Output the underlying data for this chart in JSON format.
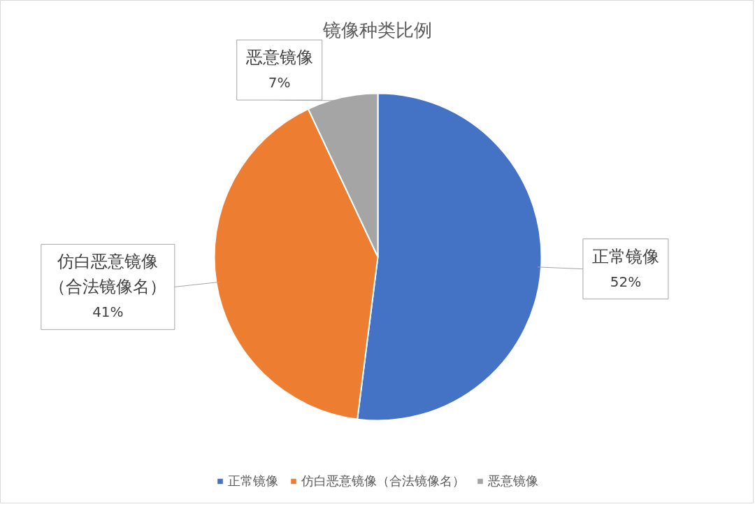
{
  "chart_data": {
    "type": "pie",
    "title": "镜像种类比例",
    "categories": [
      "正常镜像",
      "仿白恶意镜像（合法镜像名）",
      "恶意镜像"
    ],
    "values": [
      52,
      41,
      7
    ],
    "colors": [
      "#4472c4",
      "#ed7d31",
      "#a5a5a5"
    ],
    "value_labels": [
      "52%",
      "41%",
      "7%"
    ],
    "legend": "bottom"
  }
}
